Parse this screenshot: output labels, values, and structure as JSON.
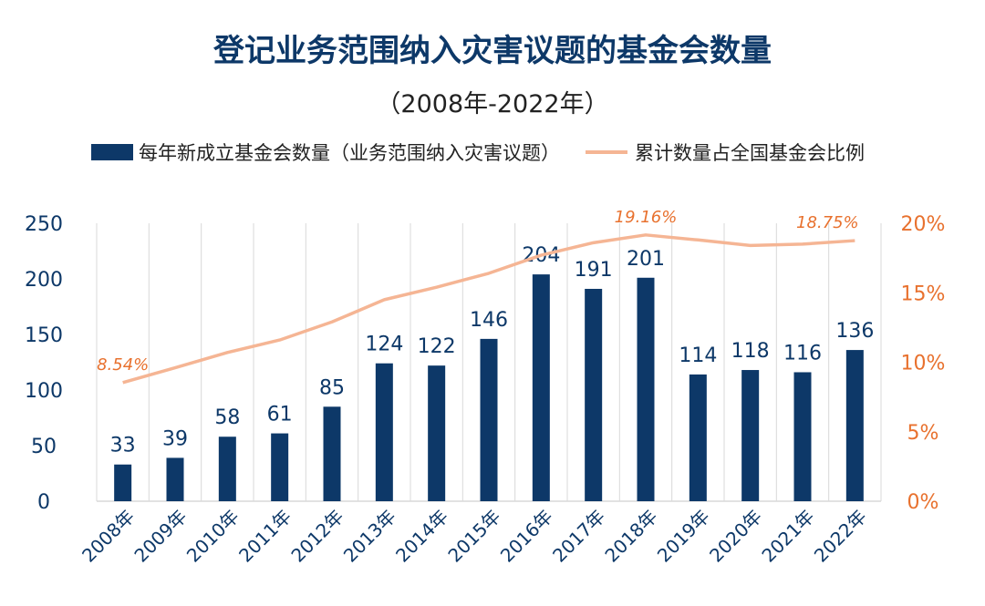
{
  "chart_data": {
    "type": "bar",
    "title": "登记业务范围纳入灾害议题的基金会数量",
    "subtitle": "（2008年-2022年）",
    "categories": [
      "2008年",
      "2009年",
      "2010年",
      "2011年",
      "2012年",
      "2013年",
      "2014年",
      "2015年",
      "2016年",
      "2017年",
      "2018年",
      "2019年",
      "2020年",
      "2021年",
      "2022年"
    ],
    "series": [
      {
        "name": "每年新成立基金会数量（业务范围纳入灾害议题）",
        "type": "bar",
        "axis": "left",
        "color": "#0d3868",
        "values": [
          33,
          39,
          58,
          61,
          85,
          124,
          122,
          146,
          204,
          191,
          201,
          114,
          118,
          116,
          136
        ]
      },
      {
        "name": "累计数量占全国基金会比例",
        "type": "line",
        "axis": "right",
        "color": "#f5b594",
        "values": [
          8.54,
          9.6,
          10.7,
          11.6,
          12.9,
          14.5,
          15.4,
          16.4,
          17.7,
          18.6,
          19.16,
          18.8,
          18.4,
          18.5,
          18.75
        ]
      }
    ],
    "line_labels": [
      {
        "index": 0,
        "text": "8.54%"
      },
      {
        "index": 10,
        "text": "19.16%"
      },
      {
        "index": 14,
        "text": "18.75%"
      }
    ],
    "y_left": {
      "min": 0,
      "max": 250,
      "ticks": [
        "0",
        "50",
        "100",
        "150",
        "200",
        "250"
      ]
    },
    "y_right": {
      "min": 0,
      "max": 20,
      "ticks": [
        "0%",
        "5%",
        "10%",
        "15%",
        "20%"
      ]
    },
    "grid": "vertical",
    "legend_position": "top"
  },
  "colors": {
    "bar": "#0d3868",
    "line": "#f5b594",
    "right_axis": "#e8712e",
    "grid": "#d9d9d9"
  }
}
